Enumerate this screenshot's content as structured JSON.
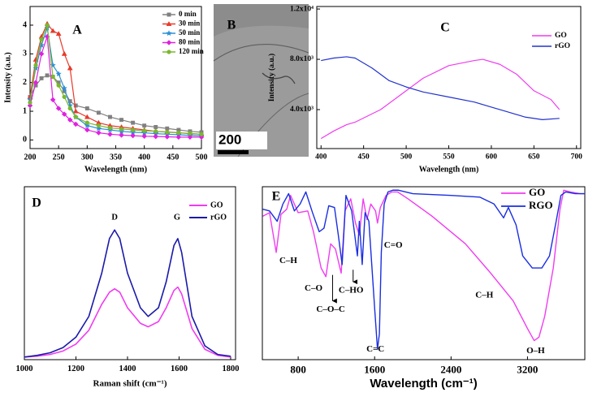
{
  "chart_data": [
    {
      "type": "line",
      "label": "A",
      "xlabel": "Wavelength (nm)",
      "ylabel": "Intensity (a.u.)",
      "xlim": [
        200,
        500
      ],
      "ylim": [
        -0.3,
        4.65
      ],
      "xticks": [
        200,
        250,
        300,
        350,
        400,
        450,
        500
      ],
      "yticks": [
        0,
        1,
        2,
        3,
        4
      ],
      "legend": "upper right",
      "x": [
        200,
        210,
        220,
        230,
        240,
        250,
        260,
        270,
        280,
        300,
        320,
        340,
        360,
        380,
        400,
        420,
        440,
        460,
        480,
        500
      ],
      "series": [
        {
          "name": "0 min",
          "color": "#808080",
          "marker": "square",
          "values": [
            1.5,
            1.9,
            2.15,
            2.25,
            2.2,
            2.0,
            1.7,
            1.35,
            1.2,
            1.1,
            0.95,
            0.8,
            0.7,
            0.6,
            0.5,
            0.45,
            0.4,
            0.35,
            0.3,
            0.27
          ]
        },
        {
          "name": "30 min",
          "color": "#e8392b",
          "marker": "triangle",
          "values": [
            1.5,
            2.8,
            3.6,
            4.05,
            3.8,
            3.7,
            3.0,
            2.5,
            1.0,
            0.8,
            0.6,
            0.5,
            0.45,
            0.4,
            0.35,
            0.3,
            0.28,
            0.25,
            0.22,
            0.2
          ]
        },
        {
          "name": "50 min",
          "color": "#2b8fd6",
          "marker": "star",
          "values": [
            1.4,
            2.5,
            3.3,
            3.9,
            2.6,
            2.3,
            1.8,
            1.2,
            0.8,
            0.5,
            0.4,
            0.35,
            0.3,
            0.27,
            0.25,
            0.22,
            0.2,
            0.18,
            0.16,
            0.15
          ]
        },
        {
          "name": "80 min",
          "color": "#e020e0",
          "marker": "diamond",
          "values": [
            1.2,
            2.0,
            3.0,
            3.6,
            1.4,
            1.1,
            0.9,
            0.7,
            0.55,
            0.35,
            0.25,
            0.2,
            0.17,
            0.15,
            0.13,
            0.12,
            0.11,
            0.1,
            0.1,
            0.1
          ]
        },
        {
          "name": "120 min",
          "color": "#7ab82e",
          "marker": "circle",
          "values": [
            1.3,
            2.6,
            3.5,
            4.0,
            2.2,
            1.9,
            1.5,
            1.1,
            0.8,
            0.6,
            0.5,
            0.42,
            0.38,
            0.35,
            0.32,
            0.3,
            0.27,
            0.25,
            0.23,
            0.2
          ]
        }
      ]
    },
    {
      "type": "image",
      "label": "B",
      "scale_label": "200"
    },
    {
      "type": "line",
      "label": "C",
      "xlabel": "Wavelength (nm)",
      "ylabel": "Intensity (a.u.)",
      "xlim": [
        395,
        705
      ],
      "ylim": [
        900,
        12200
      ],
      "xticks": [
        400,
        450,
        500,
        550,
        600,
        650,
        700
      ],
      "yticks": [
        {
          "value": 4000,
          "label": "4.0x10³"
        },
        {
          "value": 8000,
          "label": "8.0x10³"
        },
        {
          "value": 12000,
          "label": "1.2x10⁴"
        }
      ],
      "legend": "upper right",
      "series": [
        {
          "name": "GO",
          "color": "#f03cf0",
          "x": [
            400,
            415,
            430,
            440,
            455,
            470,
            490,
            520,
            550,
            580,
            590,
            610,
            630,
            650,
            670,
            680
          ],
          "values": [
            1700,
            2300,
            2800,
            3000,
            3500,
            4000,
            5000,
            6500,
            7500,
            7900,
            8000,
            7600,
            6800,
            5500,
            4800,
            4000
          ]
        },
        {
          "name": "rGO",
          "color": "#2233cc",
          "x": [
            400,
            415,
            430,
            440,
            460,
            480,
            500,
            520,
            550,
            580,
            600,
            620,
            640,
            660,
            680
          ],
          "values": [
            7900,
            8100,
            8200,
            8100,
            7300,
            6300,
            5800,
            5400,
            5000,
            4600,
            4200,
            3800,
            3400,
            3200,
            3300
          ]
        }
      ]
    },
    {
      "type": "line",
      "label": "D",
      "xlabel": "Raman shift (cm⁻¹)",
      "xlim": [
        1000,
        1819
      ],
      "ylim": [
        0,
        100
      ],
      "xticks": [
        1000,
        1200,
        1400,
        1600,
        1800
      ],
      "legend": "upper right",
      "annotations": [
        "D",
        "G"
      ],
      "x": [
        1000,
        1050,
        1100,
        1150,
        1200,
        1250,
        1300,
        1330,
        1350,
        1370,
        1400,
        1450,
        1480,
        1520,
        1550,
        1580,
        1595,
        1610,
        1650,
        1700,
        1750,
        1800
      ],
      "series": [
        {
          "name": "GO",
          "color": "#f03cf0",
          "values": [
            1.5,
            2,
            3,
            5,
            9,
            17,
            32,
            39,
            41,
            39,
            30,
            21,
            19,
            22,
            30,
            40,
            42,
            38,
            18,
            6,
            2.5,
            1.5
          ]
        },
        {
          "name": "rGO",
          "color": "#1a1aaa",
          "values": [
            1.5,
            2.5,
            4,
            7,
            13,
            25,
            50,
            70,
            75,
            70,
            50,
            30,
            25,
            30,
            45,
            66,
            70,
            62,
            25,
            8,
            3,
            2
          ]
        }
      ]
    },
    {
      "type": "line",
      "label": "E",
      "xlabel": "Wavelength (cm⁻¹)",
      "xlim": [
        425,
        3800
      ],
      "ylim": [
        0,
        100
      ],
      "xticks": [
        800,
        1600,
        2400,
        3200
      ],
      "legend": "upper right",
      "annotations": [
        "C–H",
        "C–O",
        "C–O–C",
        "C–HO",
        "C=O",
        "C=C",
        "C–H",
        "O–H"
      ],
      "series": [
        {
          "name": "GO",
          "color": "#f03cf0",
          "x": [
            430,
            500,
            570,
            620,
            680,
            720,
            800,
            900,
            960,
            1040,
            1090,
            1140,
            1190,
            1250,
            1290,
            1350,
            1400,
            1440,
            1480,
            1520,
            1560,
            1610,
            1630,
            1660,
            1720,
            1780,
            1840,
            1950,
            2200,
            2550,
            2800,
            3050,
            3200,
            3270,
            3320,
            3380,
            3470,
            3540,
            3580,
            3650,
            3750,
            3800
          ],
          "values": [
            83,
            85,
            62,
            84,
            87,
            95,
            85,
            86,
            74,
            53,
            48,
            67,
            64,
            50,
            86,
            93,
            79,
            72,
            93,
            81,
            90,
            86,
            79,
            88,
            95,
            97,
            97,
            93,
            83,
            67,
            51,
            34,
            18,
            11,
            13,
            25,
            53,
            87,
            98,
            97,
            96,
            96
          ]
        },
        {
          "name": "RGO",
          "color": "#1a2ee0",
          "x": [
            430,
            500,
            580,
            640,
            700,
            760,
            820,
            880,
            950,
            1020,
            1070,
            1120,
            1180,
            1220,
            1260,
            1300,
            1360,
            1420,
            1440,
            1470,
            1500,
            1540,
            1570,
            1600,
            1630,
            1650,
            1670,
            1700,
            1740,
            1790,
            1850,
            2000,
            2400,
            2700,
            2850,
            2950,
            3000,
            3080,
            3150,
            3250,
            3350,
            3430,
            3500,
            3550,
            3600,
            3700,
            3800
          ],
          "values": [
            87,
            86,
            80,
            90,
            96,
            86,
            90,
            97,
            85,
            74,
            76,
            89,
            88,
            72,
            55,
            95,
            86,
            60,
            80,
            55,
            85,
            80,
            55,
            30,
            6,
            15,
            62,
            90,
            97,
            98,
            98,
            96,
            95,
            94,
            90,
            82,
            88,
            78,
            60,
            53,
            53,
            60,
            80,
            95,
            97,
            96,
            96
          ]
        }
      ]
    }
  ]
}
